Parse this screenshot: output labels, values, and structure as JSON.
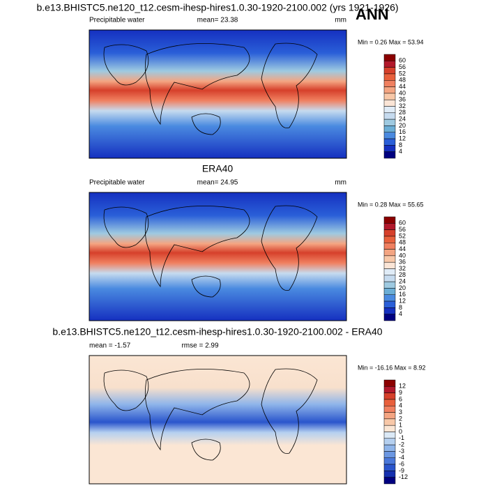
{
  "header": {
    "title": "b.e13.BHISTC5.ne120_t12.cesm-ihesp-hires1.0.30-1920-2100.002 (yrs 1921-1926)",
    "season": "ANN"
  },
  "panels": [
    {
      "left_label": "Precipitable water",
      "center_label": "mean=  23.38",
      "right_label": "mm",
      "minmax": "Min =   0.26 Max =  53.94",
      "colorbar": {
        "levels": [
          60,
          56,
          52,
          48,
          44,
          40,
          36,
          32,
          28,
          24,
          20,
          16,
          12,
          8,
          4
        ],
        "colors": [
          "#8b0000",
          "#b2182b",
          "#d6402b",
          "#e8603c",
          "#f08060",
          "#f4a582",
          "#f8c8a8",
          "#fbe5d6",
          "#e0ecf7",
          "#c6dbef",
          "#9ecae1",
          "#6baed6",
          "#4a8ae0",
          "#2a5fd8",
          "#1530c0",
          "#000080"
        ]
      }
    },
    {
      "title": "ERA40",
      "left_label": "Precipitable water",
      "center_label": "mean=  24.95",
      "right_label": "mm",
      "minmax": "Min =   0.28 Max =  55.65",
      "colorbar": {
        "levels": [
          60,
          56,
          52,
          48,
          44,
          40,
          36,
          32,
          28,
          24,
          20,
          16,
          12,
          8,
          4
        ],
        "colors": [
          "#8b0000",
          "#b2182b",
          "#d6402b",
          "#e8603c",
          "#f08060",
          "#f4a582",
          "#f8c8a8",
          "#fbe5d6",
          "#e0ecf7",
          "#c6dbef",
          "#9ecae1",
          "#6baed6",
          "#4a8ae0",
          "#2a5fd8",
          "#1530c0",
          "#000080"
        ]
      }
    },
    {
      "title": "b.e13.BHISTC5.ne120_t12.cesm-ihesp-hires1.0.30-1920-2100.002 - ERA40",
      "left_label": "mean =  -1.57",
      "center_label": "rmse =   2.99",
      "minmax": "Min = -16.16 Max =   8.92",
      "colorbar": {
        "levels": [
          12,
          9,
          6,
          4,
          3,
          2,
          1,
          0,
          -1,
          -2,
          -3,
          -4,
          -6,
          -9,
          -12
        ],
        "colors": [
          "#8b0000",
          "#b2182b",
          "#d6402b",
          "#e8603c",
          "#f08060",
          "#f4a582",
          "#f8c8a8",
          "#fbe6d4",
          "#dbe9f6",
          "#b5d0f0",
          "#8fb5ea",
          "#6b97e2",
          "#4a78da",
          "#2a55cc",
          "#1530b0",
          "#000080"
        ]
      }
    }
  ]
}
